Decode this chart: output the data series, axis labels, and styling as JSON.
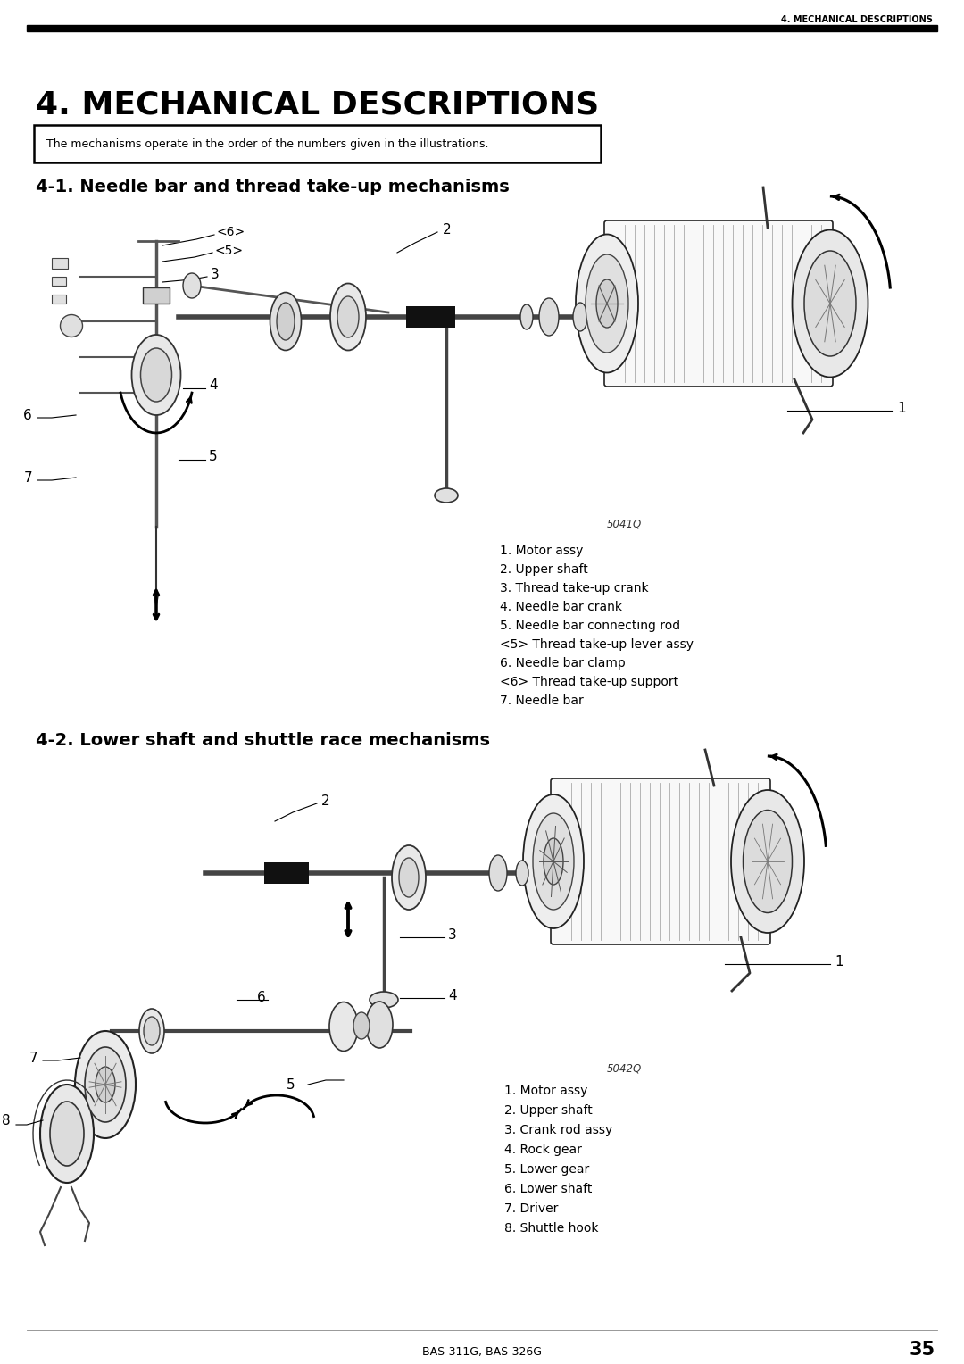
{
  "page_bg": "#ffffff",
  "header_text": "4. MECHANICAL DESCRIPTIONS",
  "title": "4. MECHANICAL DESCRIPTIONS",
  "notice_text": "The mechanisms operate in the order of the numbers given in the illustrations.",
  "section1_title": "4-1. Needle bar and thread take-up mechanisms",
  "section2_title": "4-2. Lower shaft and shuttle race mechanisms",
  "fig1_code": "5041Q",
  "fig2_code": "5042Q",
  "legend1": [
    "1. Motor assy",
    "2. Upper shaft",
    "3. Thread take-up crank",
    "4. Needle bar crank",
    "5. Needle bar connecting rod",
    "<5> Thread take-up lever assy",
    "6. Needle bar clamp",
    "<6> Thread take-up support",
    "7. Needle bar"
  ],
  "legend2": [
    "1. Motor assy",
    "2. Upper shaft",
    "3. Crank rod assy",
    "4. Rock gear",
    "5. Lower gear",
    "6. Lower shaft",
    "7. Driver",
    "8. Shuttle hook"
  ],
  "footer_text": "BAS-311G, BAS-326G",
  "page_number": "35"
}
